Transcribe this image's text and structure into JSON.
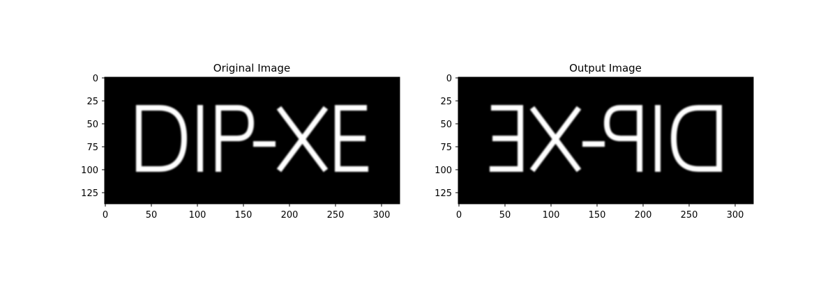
{
  "figure": {
    "background": "#ffffff",
    "image_background": "#000000",
    "text_color": "#ffffff",
    "axes_color": "#000000"
  },
  "panels": [
    {
      "title": "Original Image",
      "image_text": "DIP-XE",
      "flip_horizontal": false,
      "x_ticks": [
        "0",
        "50",
        "100",
        "150",
        "200",
        "250",
        "300"
      ],
      "y_ticks": [
        "0",
        "25",
        "50",
        "75",
        "100",
        "125"
      ]
    },
    {
      "title": "Output Image",
      "image_text": "DIP-XE",
      "flip_horizontal": true,
      "x_ticks": [
        "0",
        "50",
        "100",
        "150",
        "200",
        "250",
        "300"
      ],
      "y_ticks": [
        "0",
        "25",
        "50",
        "75",
        "100",
        "125"
      ]
    }
  ]
}
